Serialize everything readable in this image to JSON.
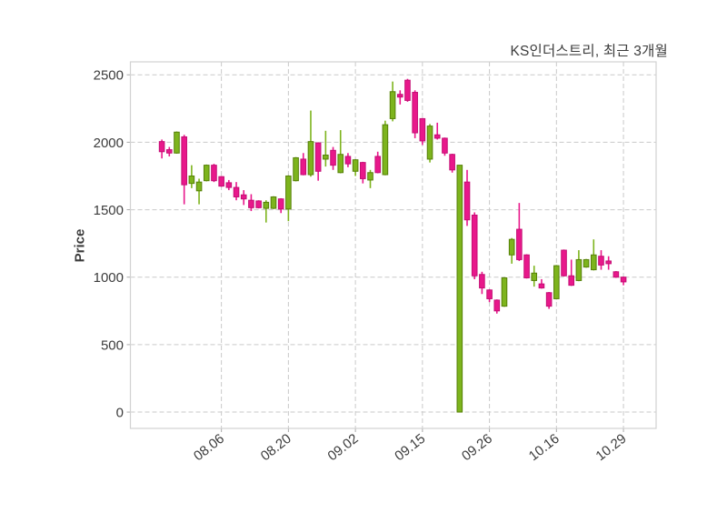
{
  "chart_data": {
    "type": "candlestick",
    "title": "KS인더스트리, 최근 3개월",
    "ylabel": "Price",
    "ylim": [
      -121,
      2596
    ],
    "y_ticks": [
      0,
      500,
      1000,
      1500,
      2000,
      2500
    ],
    "x_tick_candle_index": [
      9,
      18,
      27,
      36,
      45,
      54,
      63
    ],
    "x_tick_labels": [
      "08.06",
      "08.20",
      "09.02",
      "09.15",
      "09.26",
      "10.16",
      "10.29"
    ],
    "grid": true,
    "legend_position": "none",
    "candles_format": [
      "open",
      "high",
      "low",
      "close"
    ],
    "candles": [
      [
        2005,
        2020,
        1880,
        1930
      ],
      [
        1945,
        1965,
        1895,
        1920
      ],
      [
        1920,
        2080,
        1915,
        2075
      ],
      [
        2040,
        2055,
        1540,
        1685
      ],
      [
        1695,
        1830,
        1660,
        1750
      ],
      [
        1640,
        1730,
        1540,
        1705
      ],
      [
        1715,
        1835,
        1710,
        1830
      ],
      [
        1830,
        1840,
        1705,
        1715
      ],
      [
        1745,
        1750,
        1670,
        1675
      ],
      [
        1700,
        1720,
        1645,
        1665
      ],
      [
        1665,
        1705,
        1570,
        1595
      ],
      [
        1610,
        1645,
        1535,
        1580
      ],
      [
        1570,
        1615,
        1490,
        1515
      ],
      [
        1565,
        1570,
        1510,
        1515
      ],
      [
        1510,
        1570,
        1405,
        1555
      ],
      [
        1510,
        1600,
        1505,
        1595
      ],
      [
        1580,
        1585,
        1475,
        1505
      ],
      [
        1505,
        1755,
        1415,
        1750
      ],
      [
        1715,
        1890,
        1710,
        1885
      ],
      [
        1875,
        1920,
        1755,
        1760
      ],
      [
        1760,
        2235,
        1745,
        2005
      ],
      [
        1995,
        2000,
        1715,
        1785
      ],
      [
        1875,
        2085,
        1820,
        1905
      ],
      [
        1940,
        1965,
        1795,
        1830
      ],
      [
        1775,
        2090,
        1770,
        1910
      ],
      [
        1895,
        1920,
        1815,
        1840
      ],
      [
        1785,
        1875,
        1750,
        1870
      ],
      [
        1850,
        1855,
        1695,
        1730
      ],
      [
        1720,
        1795,
        1660,
        1775
      ],
      [
        1895,
        1930,
        1770,
        1775
      ],
      [
        1760,
        2160,
        1755,
        2130
      ],
      [
        2175,
        2450,
        2155,
        2375
      ],
      [
        2355,
        2385,
        2280,
        2335
      ],
      [
        2460,
        2470,
        2300,
        2310
      ],
      [
        2370,
        2385,
        2030,
        2070
      ],
      [
        2175,
        2180,
        1980,
        2010
      ],
      [
        1875,
        2135,
        1850,
        2120
      ],
      [
        2055,
        2145,
        2020,
        2030
      ],
      [
        2030,
        2035,
        1900,
        1920
      ],
      [
        1910,
        1915,
        1775,
        1795
      ],
      [
        0,
        1830,
        0,
        1830
      ],
      [
        1705,
        1795,
        1380,
        1425
      ],
      [
        1460,
        1480,
        985,
        1010
      ],
      [
        1020,
        1040,
        875,
        920
      ],
      [
        905,
        910,
        815,
        840
      ],
      [
        830,
        835,
        730,
        750
      ],
      [
        785,
        1000,
        780,
        995
      ],
      [
        1165,
        1290,
        1100,
        1280
      ],
      [
        1355,
        1550,
        1120,
        1130
      ],
      [
        1165,
        1170,
        990,
        995
      ],
      [
        975,
        1085,
        930,
        1030
      ],
      [
        950,
        985,
        915,
        920
      ],
      [
        885,
        890,
        765,
        785
      ],
      [
        840,
        1090,
        835,
        1085
      ],
      [
        1200,
        1205,
        1005,
        1010
      ],
      [
        1010,
        1130,
        935,
        940
      ],
      [
        975,
        1200,
        970,
        1130
      ],
      [
        1075,
        1135,
        1070,
        1130
      ],
      [
        1055,
        1280,
        1050,
        1165
      ],
      [
        1155,
        1200,
        1055,
        1090
      ],
      [
        1120,
        1155,
        1055,
        1100
      ],
      [
        1040,
        1045,
        995,
        1000
      ],
      [
        1000,
        1005,
        940,
        965
      ]
    ],
    "colors": {
      "up_fill": "#7db41d",
      "up_edge": "#568008",
      "down_fill": "#e8188b",
      "down_edge": "#c40d74",
      "grid": "#c9c9c9",
      "spine": "#d2d2d2",
      "tick": "#aaaaaa",
      "text": "#3c3c3c",
      "background": "#ffffff"
    }
  }
}
